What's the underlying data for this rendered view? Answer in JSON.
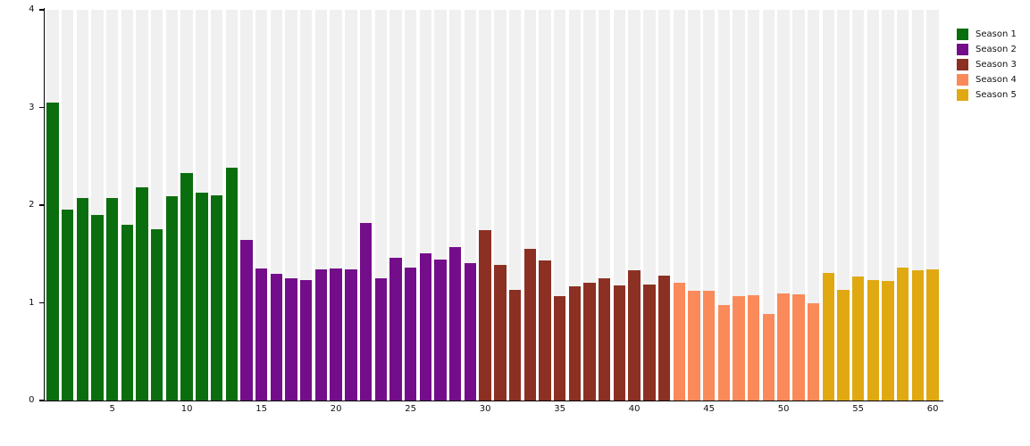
{
  "chart_data": {
    "type": "bar",
    "title": "",
    "xlabel": "",
    "ylabel": "",
    "ylim": [
      0,
      4
    ],
    "yticks": [
      "0",
      "1",
      "2",
      "3",
      "4"
    ],
    "xticks": [
      5,
      10,
      15,
      20,
      25,
      30,
      35,
      40,
      45,
      50,
      55,
      60
    ],
    "n_bars": 60,
    "grid": false,
    "plot_background_color": "#ffffff",
    "column_backdrop_color": "#f0f0f0",
    "axis_color": "#000000",
    "tick_label_color": "#111111",
    "legend_position": "top-right",
    "series": [
      {
        "name": "Season 1",
        "color": "#0b6e0e",
        "start_episode": 1,
        "values": [
          3.05,
          1.95,
          2.07,
          1.9,
          2.07,
          1.8,
          2.18,
          1.75,
          2.09,
          2.33,
          2.13,
          2.1,
          2.38
        ]
      },
      {
        "name": "Season 2",
        "color": "#740d8a",
        "start_episode": 14,
        "values": [
          1.64,
          1.35,
          1.3,
          1.25,
          1.23,
          1.34,
          1.35,
          1.34,
          1.82,
          1.25,
          1.46,
          1.36,
          1.51,
          1.44,
          1.57,
          1.41
        ]
      },
      {
        "name": "Season 3",
        "color": "#8b3023",
        "start_episode": 30,
        "values": [
          1.74,
          1.39,
          1.13,
          1.55,
          1.43,
          1.07,
          1.17,
          1.21,
          1.25,
          1.18,
          1.33,
          1.19,
          1.28
        ]
      },
      {
        "name": "Season 4",
        "color": "#fa8a5a",
        "start_episode": 43,
        "values": [
          1.21,
          1.12,
          1.12,
          0.98,
          1.07,
          1.08,
          0.89,
          1.1,
          1.09,
          1.0
        ]
      },
      {
        "name": "Season 5",
        "color": "#e0a912",
        "start_episode": 53,
        "values": [
          1.31,
          1.13,
          1.27,
          1.23,
          1.22,
          1.36,
          1.33,
          1.34
        ]
      }
    ]
  }
}
